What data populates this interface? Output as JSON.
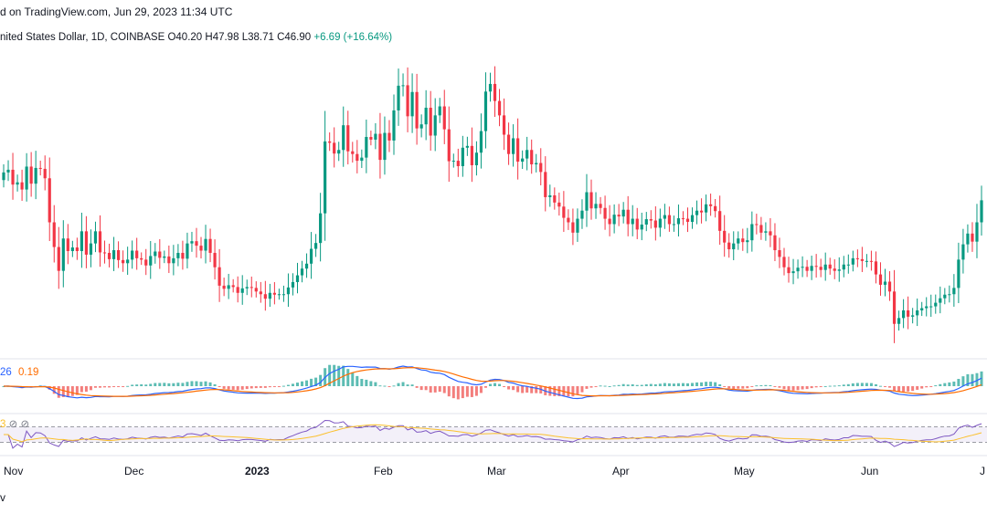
{
  "header": {
    "text": "d on TradingView.com, Jun 29, 2023 11:34 UTC"
  },
  "ohlc": {
    "symbol_text": "nited States Dollar, 1D, COINBASE",
    "open": "O40.20",
    "high": "H47.98",
    "low": "L38.71",
    "close": "C46.90",
    "change": "+6.69 (+16.64%)"
  },
  "macd_legend": {
    "macd": "26",
    "signal": "0.19"
  },
  "rsi_legend": {
    "value": "3",
    "extra": "⊘ ⊘"
  },
  "footer": {
    "text": "v"
  },
  "colors": {
    "up": "#089981",
    "down": "#f23645",
    "macd": "#2962ff",
    "signal": "#ff6d00",
    "rsi": "#7e57c2",
    "rsi_ma": "#fbc02d"
  },
  "chart_data": {
    "type": "candlestick",
    "x_ticks": [
      "Nov",
      "Dec",
      "2023",
      "Feb",
      "Mar",
      "Apr",
      "May",
      "Jun",
      "J"
    ],
    "close": [
      64.8,
      65.4,
      62.1,
      62.6,
      61.0,
      66.1,
      62.3,
      65.8,
      65.6,
      63.5,
      53.7,
      48.2,
      42.9,
      50.1,
      47.3,
      48.1,
      47.3,
      51.7,
      46.5,
      49.0,
      51.7,
      47.0,
      46.9,
      45.5,
      47.5,
      45.3,
      44.6,
      45.4,
      47.4,
      45.7,
      45.4,
      44.1,
      46.2,
      47.2,
      45.8,
      46.1,
      44.6,
      45.7,
      46.9,
      45.6,
      49.0,
      49.5,
      48.5,
      47.4,
      50.0,
      46.9,
      43.7,
      39.6,
      38.9,
      39.7,
      39.3,
      38.0,
      39.0,
      39.3,
      39.1,
      38.3,
      37.7,
      36.7,
      38.0,
      37.6,
      37.7,
      37.7,
      39.2,
      40.4,
      41.9,
      43.4,
      44.5,
      47.8,
      49.1,
      55.7,
      71.7,
      71.4,
      69.0,
      69.8,
      75.3,
      69.5,
      68.9,
      67.4,
      68.1,
      72.7,
      72.1,
      73.4,
      67.6,
      73.6,
      71.9,
      78.6,
      84.1,
      84.2,
      77.3,
      82.7,
      74.6,
      75.5,
      79.2,
      73.0,
      77.5,
      79.5,
      74.4,
      67.3,
      67.4,
      66.2,
      70.3,
      70.7,
      66.4,
      69.2,
      74.0,
      82.8,
      84.5,
      80.7,
      77.5,
      73.2,
      68.9,
      72.4,
      67.2,
      67.9,
      69.8,
      66.6,
      66.9,
      64.9,
      59.3,
      59.7,
      58.1,
      57.2,
      54.7,
      53.7,
      51.4,
      54.5,
      56.3,
      60.4,
      56.8,
      57.8,
      56.9,
      54.5,
      53.3,
      55.4,
      55.0,
      56.5,
      53.3,
      54.5,
      52.1,
      53.2,
      54.4,
      54.1,
      52.5,
      54.5,
      55.3,
      53.3,
      53.3,
      54.6,
      54.5,
      53.8,
      55.3,
      56.3,
      55.9,
      57.7,
      57.3,
      56.2,
      51.8,
      49.2,
      47.7,
      49.0,
      50.1,
      49.3,
      49.7,
      53.3,
      53.1,
      51.4,
      51.7,
      50.8,
      47.5,
      46.0,
      43.7,
      42.4,
      42.8,
      43.6,
      43.8,
      42.9,
      44.0,
      43.8,
      43.1,
      44.3,
      43.4,
      42.9,
      43.2,
      44.3,
      44.3,
      45.7,
      45.5,
      45.1,
      45.1,
      45.0,
      42.1,
      39.8,
      40.5,
      38.3,
      31.1,
      32.4,
      34.1,
      32.7,
      33.0,
      34.1,
      34.6,
      35.0,
      35.0,
      35.8,
      36.8,
      37.6,
      37.7,
      39.1,
      45.4,
      48.8,
      51.2,
      49.4,
      53.7,
      58.6
    ],
    "open_series": [
      63.1,
      64.8,
      65.4,
      62.1,
      62.6,
      61.0,
      66.1,
      62.3,
      65.8,
      65.6,
      63.5,
      53.7,
      48.2,
      42.9,
      50.1,
      47.3,
      48.1,
      47.3,
      51.7,
      46.5,
      49.0,
      51.7,
      47.0,
      46.9,
      45.5,
      47.5,
      45.3,
      44.6,
      45.4,
      47.4,
      45.7,
      45.4,
      44.1,
      46.2,
      47.2,
      45.8,
      46.1,
      44.6,
      45.7,
      46.9,
      45.6,
      49.0,
      49.5,
      48.5,
      47.4,
      50.0,
      46.9,
      43.7,
      39.6,
      38.9,
      39.7,
      39.3,
      38.0,
      39.0,
      39.3,
      39.1,
      38.3,
      37.7,
      36.7,
      38.0,
      37.6,
      37.7,
      37.7,
      39.2,
      40.4,
      41.9,
      43.4,
      44.5,
      47.8,
      49.1,
      55.7,
      71.7,
      71.4,
      69.0,
      69.8,
      75.3,
      69.5,
      68.9,
      67.4,
      68.1,
      72.7,
      72.1,
      73.4,
      67.6,
      73.6,
      71.9,
      78.6,
      84.1,
      84.2,
      77.3,
      82.7,
      74.6,
      75.5,
      79.2,
      73.0,
      77.5,
      79.5,
      74.4,
      67.3,
      67.4,
      66.2,
      70.3,
      70.7,
      66.4,
      69.2,
      74.0,
      82.8,
      84.5,
      80.7,
      77.5,
      73.2,
      68.9,
      72.4,
      67.2,
      67.9,
      69.8,
      66.6,
      66.9,
      64.9,
      59.3,
      59.7,
      58.1,
      57.2,
      54.7,
      53.7,
      51.4,
      54.5,
      56.3,
      60.4,
      56.8,
      57.8,
      56.9,
      54.5,
      53.3,
      55.4,
      55.0,
      56.5,
      53.3,
      54.5,
      52.1,
      53.2,
      54.4,
      54.1,
      52.5,
      54.5,
      55.3,
      53.3,
      53.3,
      54.6,
      54.5,
      53.8,
      55.3,
      56.3,
      55.9,
      57.7,
      57.3,
      56.2,
      51.8,
      49.2,
      47.7,
      49.0,
      50.1,
      49.3,
      49.7,
      53.3,
      53.1,
      51.4,
      51.7,
      50.8,
      47.5,
      46.0,
      43.7,
      42.4,
      42.8,
      43.6,
      43.8,
      42.9,
      44.0,
      43.8,
      43.1,
      44.3,
      43.4,
      42.9,
      43.2,
      44.3,
      44.3,
      45.7,
      45.5,
      45.1,
      45.1,
      45.0,
      42.1,
      39.8,
      40.5,
      38.3,
      31.1,
      32.4,
      34.1,
      32.7,
      33.0,
      34.1,
      34.6,
      35.0,
      35.0,
      35.8,
      36.8,
      37.6,
      37.7,
      39.1,
      45.4,
      48.8,
      51.2,
      49.4,
      53.7
    ],
    "y_range": [
      28,
      92
    ]
  }
}
